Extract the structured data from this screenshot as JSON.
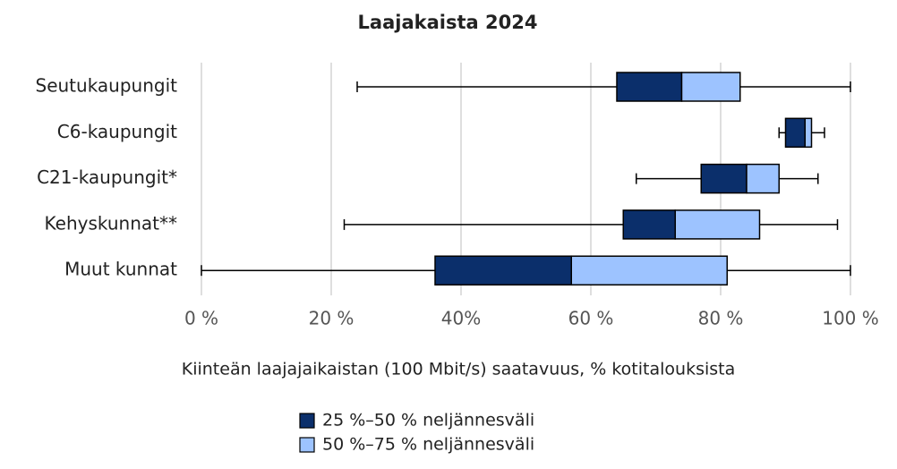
{
  "chart_data": {
    "type": "box",
    "title": "Laajakaista 2024",
    "x_label": "Kiinteän laajajaikaistan (100 Mbit/s) saatavuus, % kotitalouksista",
    "categories": [
      "Seutukaupungit",
      "C6-kaupungit",
      "C21-kaupungit*",
      "Kehyskunnat**",
      "Muut kunnat"
    ],
    "boxes": [
      {
        "min": 24,
        "q1": 64,
        "median": 74,
        "q3": 83,
        "max": 100
      },
      {
        "min": 89,
        "q1": 90,
        "median": 93,
        "q3": 94,
        "max": 96
      },
      {
        "min": 67,
        "q1": 77,
        "median": 84,
        "q3": 89,
        "max": 95
      },
      {
        "min": 22,
        "q1": 65,
        "median": 73,
        "q3": 86,
        "max": 98
      },
      {
        "min": 0,
        "q1": 36,
        "median": 57,
        "q3": 81,
        "max": 100
      }
    ],
    "series": [
      {
        "name": "25 %–50 % neljännesväli",
        "color": "#0b2f6b"
      },
      {
        "name": "50 %–75 % neljännesväli",
        "color": "#9dc3ff"
      }
    ],
    "xlim": [
      0,
      100
    ],
    "xticks": [
      {
        "value": 0,
        "label": "0 %"
      },
      {
        "value": 20,
        "label": "20 %"
      },
      {
        "value": 40,
        "label": "40%"
      },
      {
        "value": 60,
        "label": "60 %"
      },
      {
        "value": 80,
        "label": "80 %"
      },
      {
        "value": 100,
        "label": "100 %"
      }
    ],
    "grid": true
  }
}
